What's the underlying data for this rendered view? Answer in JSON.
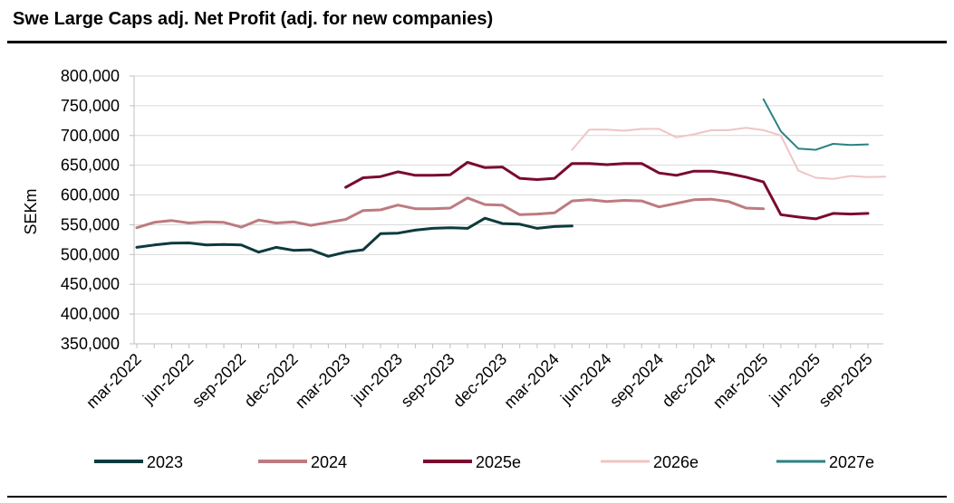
{
  "page": {
    "title": "Swe Large Caps adj. Net Profit (adj. for new companies)"
  },
  "chart_data": {
    "type": "line",
    "title": "Swe Large Caps adj. Net Profit (adj. for new companies)",
    "xlabel": "",
    "ylabel": "SEKm",
    "ylim": [
      350000,
      800000
    ],
    "yticks": [
      350000,
      400000,
      450000,
      500000,
      550000,
      600000,
      650000,
      700000,
      750000,
      800000
    ],
    "ytick_labels": [
      "350,000",
      "400,000",
      "450,000",
      "500,000",
      "550,000",
      "600,000",
      "650,000",
      "700,000",
      "750,000",
      "800,000"
    ],
    "x_count": 43,
    "xtick_labels": [
      "mar-2022",
      "jun-2022",
      "sep-2022",
      "dec-2022",
      "mar-2023",
      "jun-2023",
      "sep-2023",
      "dec-2023",
      "mar-2024",
      "jun-2024",
      "sep-2024",
      "dec-2024",
      "mar-2025",
      "jun-2025",
      "sep-2025"
    ],
    "xtick_positions": [
      0,
      3,
      6,
      9,
      12,
      15,
      18,
      21,
      24,
      27,
      30,
      33,
      36,
      39,
      42
    ],
    "grid": true,
    "legend_position": "bottom",
    "series": [
      {
        "name": "2023",
        "color": "#0e3a3c",
        "width": 3,
        "start": 0,
        "values": [
          512000,
          516000,
          519000,
          519500,
          516000,
          517000,
          516000,
          504000,
          512000,
          507000,
          508000,
          497000,
          504000,
          508000,
          535000,
          536000,
          541000,
          544000,
          545000,
          544000,
          561000,
          552000,
          551000,
          544000,
          547000,
          548000
        ]
      },
      {
        "name": "2024",
        "color": "#bd7b80",
        "width": 3,
        "start": 0,
        "values": [
          545000,
          554000,
          557000,
          553000,
          555000,
          554000,
          546000,
          558000,
          553000,
          555000,
          549000,
          554000,
          559000,
          574000,
          575000,
          583000,
          577000,
          577000,
          578000,
          595000,
          584000,
          583000,
          567000,
          568000,
          570000,
          590000,
          592000,
          589000,
          591000,
          590000,
          580000,
          586000,
          592000,
          593000,
          589000,
          578000,
          577000
        ]
      },
      {
        "name": "2025e",
        "color": "#7a0a2e",
        "width": 3,
        "start": 12,
        "values": [
          613000,
          629000,
          631000,
          639000,
          633000,
          633000,
          634000,
          655000,
          646000,
          647000,
          628000,
          626000,
          628000,
          653000,
          653000,
          651000,
          653000,
          653000,
          637000,
          633000,
          640000,
          640000,
          636000,
          630000,
          622000,
          567000,
          563000,
          560000,
          569000,
          568000,
          569000
        ]
      },
      {
        "name": "2026e",
        "color": "#f0c4c4",
        "width": 2,
        "start": 25,
        "values": [
          676000,
          710000,
          710000,
          708000,
          711000,
          711000,
          697000,
          702000,
          709000,
          709000,
          713000,
          709000,
          700000,
          641000,
          629000,
          627000,
          632000,
          630000,
          631000
        ]
      },
      {
        "name": "2027e",
        "color": "#2a8282",
        "width": 2,
        "start": 36,
        "values": [
          761000,
          707000,
          678000,
          676000,
          686000,
          684000,
          685000
        ]
      }
    ]
  }
}
